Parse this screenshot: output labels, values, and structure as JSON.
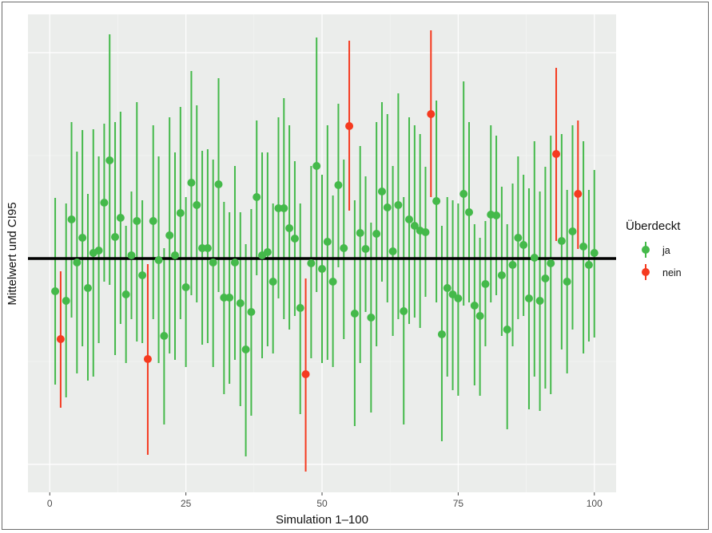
{
  "chart_data": {
    "type": "errorbar",
    "title": "",
    "xlabel": "Simulation 1–100",
    "ylabel": "Mittelwert und CI95",
    "xlim": [
      -4,
      104
    ],
    "ylim": [
      -29.3,
      30.6
    ],
    "x_ticks": [
      0,
      25,
      50,
      75,
      100
    ],
    "x_tick_labels": [
      "0",
      "25",
      "50",
      "75",
      "100"
    ],
    "y_tick_labels": [],
    "y_major_grid": [
      -25.8,
      0,
      25.8
    ],
    "y_minor_grid": [
      -12.9,
      12.9
    ],
    "reference_line": 0,
    "grid": true,
    "legend": {
      "title": "Überdeckt",
      "placement": "right",
      "entries": [
        {
          "label": "ja",
          "color": "#44b94a"
        },
        {
          "label": "nein",
          "color": "#f53a1f"
        }
      ]
    },
    "points": [
      [
        1,
        -4.1,
        -15.8,
        7.6
      ],
      [
        2,
        -10.1,
        -18.7,
        -1.6
      ],
      [
        3,
        -5.3,
        -17.4,
        6.9
      ],
      [
        4,
        4.9,
        -7.4,
        17.1
      ],
      [
        5,
        -0.5,
        -14.4,
        13.4
      ],
      [
        6,
        2.6,
        -11.0,
        16.1
      ],
      [
        7,
        -3.7,
        -15.3,
        8.1
      ],
      [
        8,
        0.7,
        -14.8,
        16.2
      ],
      [
        9,
        1.0,
        -10.6,
        12.8
      ],
      [
        10,
        7.0,
        -2.9,
        16.9
      ],
      [
        11,
        12.3,
        -3.3,
        28.1
      ],
      [
        12,
        2.7,
        -12.1,
        17.1
      ],
      [
        13,
        5.1,
        -8.2,
        18.4
      ],
      [
        14,
        -4.5,
        -13.1,
        4.1
      ],
      [
        15,
        0.4,
        -7.6,
        8.4
      ],
      [
        16,
        4.7,
        -10.4,
        19.6
      ],
      [
        17,
        -2.1,
        -10.6,
        7.3
      ],
      [
        18,
        -12.6,
        -24.6,
        -0.7
      ],
      [
        19,
        4.7,
        -7.6,
        16.7
      ],
      [
        20,
        -0.2,
        -13.1,
        12.8
      ],
      [
        21,
        -9.7,
        -20.8,
        1.3
      ],
      [
        22,
        2.9,
        -11.9,
        17.7
      ],
      [
        23,
        0.4,
        -12.7,
        13.3
      ],
      [
        24,
        5.7,
        -7.6,
        19.0
      ],
      [
        25,
        -3.6,
        -13.6,
        7.7
      ],
      [
        26,
        9.5,
        -4.6,
        23.5
      ],
      [
        27,
        6.7,
        -5.5,
        19.2
      ],
      [
        28,
        1.3,
        -10.8,
        13.5
      ],
      [
        29,
        1.3,
        -10.6,
        13.7
      ],
      [
        30,
        -0.5,
        -13.6,
        12.4
      ],
      [
        31,
        9.3,
        -4.2,
        22.6
      ],
      [
        32,
        -4.9,
        -17.0,
        7.1
      ],
      [
        33,
        -4.9,
        -15.7,
        5.8
      ],
      [
        34,
        -0.5,
        -12.7,
        11.6
      ],
      [
        35,
        -5.6,
        -18.5,
        5.8
      ],
      [
        36,
        -11.4,
        -24.8,
        1.8
      ],
      [
        37,
        -6.7,
        -19.7,
        6.2
      ],
      [
        38,
        7.7,
        -2.1,
        17.3
      ],
      [
        39,
        0.4,
        -12.5,
        13.3
      ],
      [
        40,
        0.8,
        -11.0,
        13.3
      ],
      [
        41,
        -2.9,
        -11.9,
        6.9
      ],
      [
        42,
        6.3,
        -5.0,
        17.7
      ],
      [
        43,
        6.3,
        -7.6,
        20.1
      ],
      [
        44,
        3.8,
        -8.9,
        16.7
      ],
      [
        45,
        2.5,
        -7.2,
        12.2
      ],
      [
        46,
        -6.2,
        -19.5,
        6.9
      ],
      [
        47,
        -14.5,
        -26.7,
        -2.5
      ],
      [
        48,
        -0.6,
        -12.5,
        11.6
      ],
      [
        49,
        11.6,
        -4.2,
        27.7
      ],
      [
        50,
        -1.3,
        -13.1,
        10.5
      ],
      [
        51,
        2.1,
        -12.7,
        16.7
      ],
      [
        52,
        -2.9,
        -13.6,
        7.9
      ],
      [
        53,
        9.2,
        -1.1,
        19.4
      ],
      [
        54,
        1.3,
        -10.1,
        12.4
      ],
      [
        55,
        16.6,
        6.0,
        27.3
      ],
      [
        56,
        -6.9,
        -21.0,
        7.3
      ],
      [
        57,
        3.2,
        -13.1,
        14.1
      ],
      [
        58,
        1.2,
        -6.7,
        10.3
      ],
      [
        59,
        -7.4,
        -19.3,
        4.5
      ],
      [
        60,
        3.1,
        -11.0,
        17.1
      ],
      [
        61,
        8.4,
        -2.9,
        19.6
      ],
      [
        62,
        6.4,
        -5.5,
        18.1
      ],
      [
        63,
        0.9,
        -9.7,
        11.6
      ],
      [
        64,
        6.7,
        -7.6,
        20.7
      ],
      [
        65,
        -6.6,
        -20.8,
        7.7
      ],
      [
        66,
        4.9,
        -8.2,
        17.7
      ],
      [
        67,
        4.1,
        -7.4,
        16.7
      ],
      [
        68,
        3.5,
        -8.7,
        15.6
      ],
      [
        69,
        3.3,
        -4.8,
        11.5
      ],
      [
        70,
        18.1,
        7.7,
        28.6
      ],
      [
        71,
        7.2,
        -5.5,
        19.8
      ],
      [
        72,
        -9.5,
        -22.9,
        4.1
      ],
      [
        73,
        -3.7,
        -14.8,
        7.7
      ],
      [
        74,
        -4.5,
        -16.5,
        7.3
      ],
      [
        75,
        -5.0,
        -17.2,
        6.9
      ],
      [
        76,
        8.1,
        -5.9,
        22.2
      ],
      [
        77,
        5.8,
        -5.5,
        17.1
      ],
      [
        78,
        -5.9,
        -15.9,
        4.3
      ],
      [
        79,
        -7.2,
        -17.2,
        2.6
      ],
      [
        80,
        -3.2,
        -11.0,
        4.7
      ],
      [
        81,
        5.5,
        -5.5,
        16.7
      ],
      [
        82,
        5.4,
        -4.6,
        15.4
      ],
      [
        83,
        -2.1,
        -9.7,
        9.0
      ],
      [
        84,
        -8.9,
        -21.4,
        4.3
      ],
      [
        85,
        -0.8,
        -11.0,
        9.4
      ],
      [
        86,
        2.6,
        -7.6,
        12.8
      ],
      [
        87,
        1.7,
        -7.2,
        10.5
      ],
      [
        88,
        -5.0,
        -18.9,
        8.8
      ],
      [
        89,
        0.1,
        -14.8,
        14.7
      ],
      [
        90,
        -5.3,
        -19.1,
        8.4
      ],
      [
        91,
        -2.5,
        -16.3,
        11.5
      ],
      [
        92,
        -0.6,
        -17.0,
        15.4
      ],
      [
        93,
        13.1,
        2.2,
        23.9
      ],
      [
        94,
        2.2,
        -11.4,
        15.6
      ],
      [
        95,
        -2.9,
        -14.4,
        8.6
      ],
      [
        96,
        3.4,
        -8.9,
        16.7
      ],
      [
        97,
        8.1,
        1.2,
        17.3
      ],
      [
        98,
        1.5,
        -11.9,
        14.7
      ],
      [
        99,
        -0.8,
        -10.4,
        8.6
      ],
      [
        100,
        0.7,
        -9.9,
        11.1
      ]
    ],
    "point_fields": [
      "simulation",
      "mean",
      "ci_lower",
      "ci_upper"
    ]
  }
}
